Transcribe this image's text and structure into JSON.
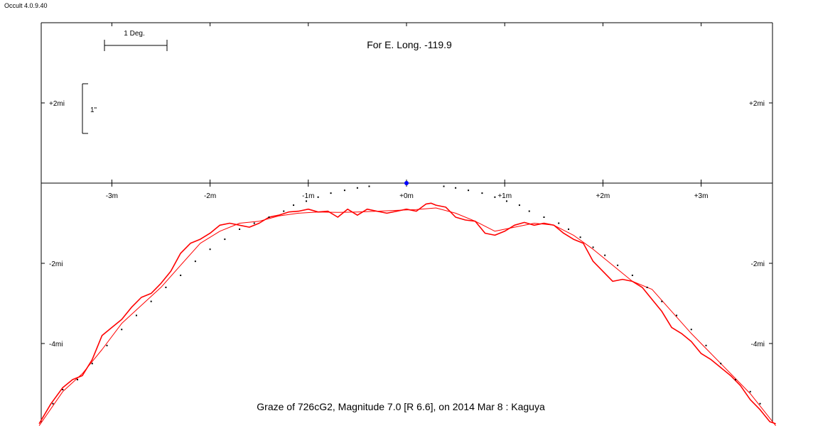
{
  "app": {
    "title": "Occult 4.0.9.40"
  },
  "chart_data": {
    "type": "line",
    "title": "Graze of  726cG2,  Magnitude 7.0 [R 6.6],  on 2014 Mar  8  :  Kaguya",
    "subtitle": "For E. Long. -119.9",
    "x_unit": "m",
    "y_unit": "mi",
    "xlim": [
      -3.72,
      3.72
    ],
    "ylim": [
      -6.0,
      4.0
    ],
    "x_tick_values": [
      -3,
      -2,
      -1,
      0,
      1,
      2,
      3
    ],
    "x_tick_labels": [
      "-3m",
      "-2m",
      "-1m",
      "+0m",
      "+1m",
      "+2m",
      "+3m"
    ],
    "y_tick_values": [
      2,
      -2,
      -4
    ],
    "y_tick_labels": [
      "+2mi",
      "-2mi",
      "-4mi"
    ],
    "scale_bars": {
      "degree_label": "1 Deg.",
      "arcsec_label": "1\""
    },
    "marker": {
      "name": "star position",
      "x": 0,
      "y": 0,
      "color": "#0000ff"
    },
    "series": [
      {
        "name": "Kaguya limb profile",
        "color": "#ff0000",
        "x": [
          -3.74,
          -3.62,
          -3.5,
          -3.4,
          -3.3,
          -3.2,
          -3.1,
          -3.0,
          -2.9,
          -2.8,
          -2.7,
          -2.6,
          -2.5,
          -2.4,
          -2.3,
          -2.2,
          -2.1,
          -2.0,
          -1.9,
          -1.8,
          -1.7,
          -1.6,
          -1.5,
          -1.4,
          -1.3,
          -1.2,
          -1.1,
          -1.0,
          -0.9,
          -0.8,
          -0.7,
          -0.6,
          -0.5,
          -0.4,
          -0.3,
          -0.2,
          -0.1,
          0.0,
          0.1,
          0.2,
          0.25,
          0.3,
          0.4,
          0.5,
          0.6,
          0.7,
          0.8,
          0.9,
          1.0,
          1.1,
          1.2,
          1.3,
          1.4,
          1.5,
          1.6,
          1.7,
          1.8,
          1.9,
          2.0,
          2.1,
          2.2,
          2.3,
          2.4,
          2.5,
          2.6,
          2.7,
          2.8,
          2.9,
          3.0,
          3.1,
          3.2,
          3.3,
          3.4,
          3.5,
          3.6,
          3.7,
          3.76
        ],
        "y": [
          -6.0,
          -5.5,
          -5.1,
          -4.9,
          -4.8,
          -4.4,
          -3.8,
          -3.6,
          -3.4,
          -3.1,
          -2.85,
          -2.75,
          -2.5,
          -2.2,
          -1.75,
          -1.5,
          -1.4,
          -1.25,
          -1.05,
          -1.0,
          -1.05,
          -1.1,
          -1.0,
          -0.85,
          -0.8,
          -0.72,
          -0.7,
          -0.65,
          -0.72,
          -0.7,
          -0.85,
          -0.65,
          -0.8,
          -0.65,
          -0.7,
          -0.75,
          -0.7,
          -0.65,
          -0.7,
          -0.52,
          -0.5,
          -0.55,
          -0.6,
          -0.85,
          -0.92,
          -0.95,
          -1.25,
          -1.3,
          -1.2,
          -1.05,
          -0.98,
          -1.05,
          -1.0,
          -1.05,
          -1.25,
          -1.4,
          -1.5,
          -1.95,
          -2.2,
          -2.45,
          -2.4,
          -2.45,
          -2.6,
          -2.9,
          -3.2,
          -3.6,
          -3.75,
          -3.95,
          -4.25,
          -4.4,
          -4.6,
          -4.8,
          -5.05,
          -5.4,
          -5.65,
          -5.95,
          -6.0
        ]
      },
      {
        "name": "Smoothed limb profile",
        "color": "#ff0000",
        "x": [
          -3.74,
          -3.5,
          -3.3,
          -3.1,
          -2.9,
          -2.7,
          -2.5,
          -2.3,
          -2.1,
          -1.9,
          -1.7,
          -1.5,
          -1.3,
          -1.1,
          -0.9,
          -0.7,
          -0.5,
          -0.3,
          -0.1,
          0.1,
          0.3,
          0.5,
          0.7,
          0.9,
          1.1,
          1.3,
          1.5,
          1.7,
          1.9,
          2.1,
          2.3,
          2.5,
          2.7,
          2.9,
          3.1,
          3.3,
          3.5,
          3.76
        ],
        "y": [
          -6.05,
          -5.2,
          -4.75,
          -4.15,
          -3.5,
          -3.05,
          -2.6,
          -2.05,
          -1.5,
          -1.2,
          -1.0,
          -0.95,
          -0.82,
          -0.75,
          -0.72,
          -0.73,
          -0.72,
          -0.7,
          -0.68,
          -0.66,
          -0.62,
          -0.75,
          -0.95,
          -1.2,
          -1.1,
          -1.0,
          -1.05,
          -1.3,
          -1.65,
          -2.05,
          -2.45,
          -2.65,
          -3.2,
          -3.75,
          -4.25,
          -4.75,
          -5.25,
          -6.05
        ]
      },
      {
        "name": "Predicted limb dots",
        "color": "#000000",
        "x": [
          -3.6,
          -3.5,
          -3.35,
          -3.2,
          -3.05,
          -2.9,
          -2.75,
          -2.6,
          -2.45,
          -2.3,
          -2.15,
          -2.0,
          -1.85,
          -1.7,
          -1.55,
          -1.4,
          -1.25,
          -1.15,
          -1.02,
          -0.9,
          -0.77,
          -0.63,
          -0.5,
          -0.38,
          0.38,
          0.5,
          0.63,
          0.77,
          0.9,
          1.02,
          1.15,
          1.25,
          1.4,
          1.55,
          1.65,
          1.77,
          1.9,
          2.02,
          2.15,
          2.3,
          2.45,
          2.6,
          2.75,
          2.9,
          3.05,
          3.2,
          3.35,
          3.5,
          3.6
        ],
        "y": [
          -5.5,
          -5.15,
          -4.9,
          -4.5,
          -4.05,
          -3.65,
          -3.3,
          -2.95,
          -2.6,
          -2.3,
          -1.95,
          -1.65,
          -1.4,
          -1.15,
          -1.0,
          -0.85,
          -0.7,
          -0.55,
          -0.45,
          -0.35,
          -0.25,
          -0.18,
          -0.12,
          -0.08,
          -0.08,
          -0.12,
          -0.18,
          -0.25,
          -0.35,
          -0.45,
          -0.55,
          -0.7,
          -0.85,
          -1.0,
          -1.15,
          -1.35,
          -1.6,
          -1.8,
          -2.05,
          -2.3,
          -2.6,
          -2.95,
          -3.3,
          -3.65,
          -4.05,
          -4.5,
          -4.9,
          -5.2,
          -5.5
        ]
      }
    ]
  }
}
